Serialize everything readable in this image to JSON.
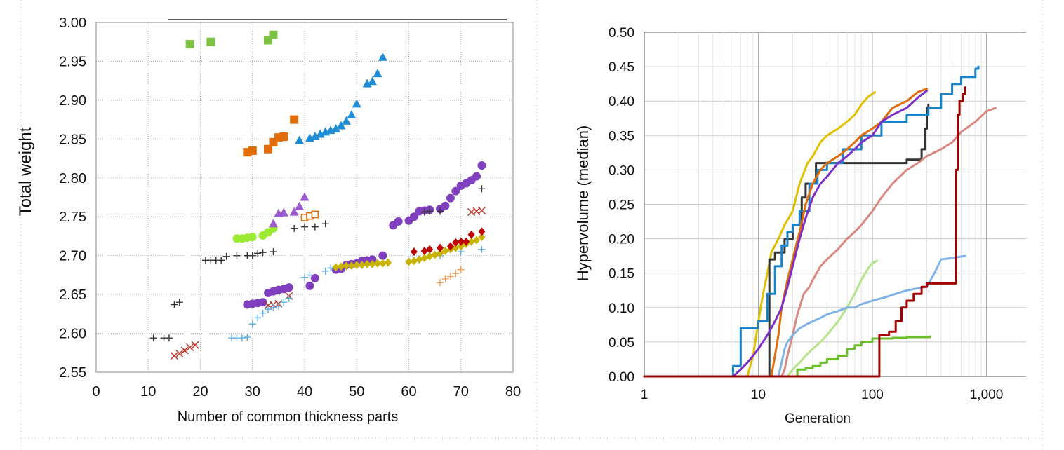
{
  "chart_data": [
    {
      "type": "scatter",
      "title": "",
      "xlabel": "Number of common thickness parts",
      "ylabel": "Total weight",
      "xlim": [
        0,
        80
      ],
      "ylim": [
        2.55,
        3.0
      ],
      "xticks": [
        "0",
        "10",
        "20",
        "30",
        "40",
        "50",
        "60",
        "70",
        "80"
      ],
      "yticks": [
        "2.55",
        "2.60",
        "2.65",
        "2.70",
        "2.75",
        "2.80",
        "2.85",
        "2.90",
        "2.95",
        "3.00"
      ],
      "grid": true,
      "legend": "none",
      "series": [
        {
          "color": "#7dc242",
          "marker": "square",
          "x": [
            18,
            22,
            33,
            34
          ],
          "y": [
            2.972,
            2.975,
            2.977,
            2.984
          ]
        },
        {
          "color": "#e36c0a",
          "marker": "square",
          "x": [
            29,
            30,
            33,
            34,
            35,
            36,
            38
          ],
          "y": [
            2.833,
            2.835,
            2.837,
            2.846,
            2.852,
            2.853,
            2.875
          ]
        },
        {
          "color": "#1f8dd6",
          "marker": "triangle",
          "x": [
            39,
            41,
            42,
            43,
            44,
            45,
            46,
            47,
            48,
            49,
            50,
            52,
            53,
            54,
            55
          ],
          "y": [
            2.848,
            2.851,
            2.853,
            2.856,
            2.859,
            2.861,
            2.863,
            2.867,
            2.873,
            2.881,
            2.895,
            2.921,
            2.924,
            2.934,
            2.955
          ]
        },
        {
          "color": "#7f3fbf",
          "marker": "circle",
          "x": [
            29,
            30,
            31,
            32,
            33,
            34,
            35,
            36,
            37,
            41,
            42,
            46,
            47,
            48,
            49,
            50,
            51,
            52,
            53,
            55,
            57,
            58,
            60,
            61,
            62,
            63,
            64,
            66,
            67,
            68,
            69,
            70,
            71,
            72,
            73,
            74
          ],
          "y": [
            2.637,
            2.638,
            2.639,
            2.64,
            2.652,
            2.654,
            2.656,
            2.657,
            2.659,
            2.661,
            2.671,
            2.682,
            2.683,
            2.688,
            2.689,
            2.69,
            2.693,
            2.694,
            2.695,
            2.7,
            2.739,
            2.744,
            2.745,
            2.75,
            2.757,
            2.758,
            2.759,
            2.76,
            2.764,
            2.774,
            2.783,
            2.79,
            2.793,
            2.797,
            2.802,
            2.816
          ]
        },
        {
          "color": "#9aeb31",
          "marker": "circle",
          "x": [
            27,
            28,
            29,
            30,
            32,
            33,
            34
          ],
          "y": [
            2.722,
            2.722,
            2.723,
            2.724,
            2.726,
            2.73,
            2.735
          ]
        },
        {
          "color": "#9b59d0",
          "marker": "triangle",
          "x": [
            34,
            35,
            36,
            38,
            39,
            40
          ],
          "y": [
            2.741,
            2.754,
            2.755,
            2.756,
            2.763,
            2.775
          ]
        },
        {
          "color": "#333333",
          "marker": "plus",
          "x": [
            11,
            13,
            14,
            15,
            16,
            21,
            22,
            23,
            24,
            25,
            27,
            29,
            30,
            31,
            32,
            34,
            38,
            40,
            42,
            44,
            63,
            64,
            66,
            74
          ],
          "y": [
            2.594,
            2.594,
            2.594,
            2.637,
            2.64,
            2.694,
            2.694,
            2.694,
            2.694,
            2.699,
            2.7,
            2.7,
            2.7,
            2.703,
            2.704,
            2.705,
            2.735,
            2.737,
            2.737,
            2.741,
            2.756,
            2.757,
            2.757,
            2.786
          ]
        },
        {
          "color": "#e36c0a",
          "marker": "open-square",
          "x": [
            40,
            41,
            42
          ],
          "y": [
            2.749,
            2.751,
            2.753
          ]
        },
        {
          "color": "#c0392b",
          "marker": "x",
          "x": [
            15,
            16,
            17,
            18,
            19,
            33,
            34,
            35,
            37,
            72,
            73,
            74
          ],
          "y": [
            2.571,
            2.574,
            2.578,
            2.582,
            2.585,
            2.636,
            2.637,
            2.638,
            2.648,
            2.756,
            2.757,
            2.758
          ]
        },
        {
          "color": "#5dade2",
          "marker": "plus",
          "x": [
            26,
            27,
            28,
            29,
            30,
            31,
            32,
            33,
            34,
            35,
            36,
            37,
            40,
            41,
            44,
            45,
            46,
            48,
            50,
            52,
            54,
            56,
            60,
            62,
            66,
            70,
            74
          ],
          "y": [
            2.594,
            2.594,
            2.594,
            2.595,
            2.612,
            2.62,
            2.626,
            2.631,
            2.633,
            2.635,
            2.64,
            2.645,
            2.672,
            2.675,
            2.68,
            2.684,
            2.685,
            2.686,
            2.688,
            2.689,
            2.69,
            2.691,
            2.693,
            2.695,
            2.7,
            2.705,
            2.708
          ]
        },
        {
          "color": "#c8b400",
          "marker": "diamond",
          "x": [
            46,
            47,
            48,
            49,
            50,
            51,
            52,
            53,
            54,
            55,
            56,
            60,
            61,
            62,
            63,
            64,
            65,
            66,
            67,
            68,
            69,
            70,
            71,
            72,
            73,
            74
          ],
          "y": [
            2.685,
            2.686,
            2.687,
            2.687,
            2.688,
            2.688,
            2.689,
            2.689,
            2.69,
            2.69,
            2.691,
            2.692,
            2.693,
            2.695,
            2.697,
            2.699,
            2.701,
            2.703,
            2.706,
            2.708,
            2.71,
            2.712,
            2.715,
            2.718,
            2.72,
            2.724
          ]
        },
        {
          "color": "#c00000",
          "marker": "diamond",
          "x": [
            61,
            63,
            64,
            66,
            68,
            69,
            70,
            71,
            72,
            74
          ],
          "y": [
            2.705,
            2.706,
            2.708,
            2.71,
            2.712,
            2.717,
            2.718,
            2.718,
            2.727,
            2.731
          ]
        },
        {
          "color": "#f5a05a",
          "marker": "plus",
          "x": [
            66,
            67,
            68,
            69,
            70
          ],
          "y": [
            2.665,
            2.67,
            2.673,
            2.677,
            2.682
          ]
        }
      ]
    },
    {
      "type": "line",
      "title": "",
      "xlabel": "Generation",
      "ylabel": "Hypervolume (median)",
      "xscale": "log",
      "xlim": [
        1,
        1500
      ],
      "ylim": [
        0,
        0.5
      ],
      "xticks": [
        "1",
        "10",
        "100",
        "1,000"
      ],
      "yticks": [
        "0.00",
        "0.05",
        "0.10",
        "0.15",
        "0.20",
        "0.25",
        "0.30",
        "0.35",
        "0.40",
        "0.45",
        "0.50"
      ],
      "grid": true,
      "legend": "none",
      "series": [
        {
          "color": "#e0c000",
          "step": false,
          "x": [
            1,
            8,
            9,
            10,
            11,
            12,
            13,
            15,
            17,
            20,
            23,
            27,
            30,
            35,
            40,
            50,
            60,
            70,
            80,
            90,
            105
          ],
          "y": [
            0,
            0,
            0.03,
            0.08,
            0.12,
            0.15,
            0.18,
            0.2,
            0.22,
            0.24,
            0.28,
            0.31,
            0.32,
            0.34,
            0.35,
            0.36,
            0.37,
            0.38,
            0.395,
            0.405,
            0.413
          ]
        },
        {
          "color": "#333333",
          "step": true,
          "x": [
            1,
            12,
            12.5,
            14,
            17,
            20,
            24,
            26,
            32,
            38,
            55,
            100,
            200,
            270,
            290,
            300,
            310
          ],
          "y": [
            0,
            0,
            0.17,
            0.18,
            0.2,
            0.22,
            0.26,
            0.28,
            0.31,
            0.31,
            0.31,
            0.31,
            0.315,
            0.33,
            0.36,
            0.39,
            0.395
          ]
        },
        {
          "color": "#1a82c8",
          "step": true,
          "x": [
            1,
            5.3,
            6,
            7,
            9,
            10,
            12,
            14,
            16,
            18,
            20,
            23,
            28,
            33,
            40,
            55,
            80,
            120,
            200,
            310,
            400,
            500,
            600,
            800,
            850
          ],
          "y": [
            0,
            0,
            0.015,
            0.07,
            0.07,
            0.08,
            0.12,
            0.16,
            0.19,
            0.21,
            0.22,
            0.24,
            0.28,
            0.3,
            0.31,
            0.33,
            0.35,
            0.37,
            0.38,
            0.39,
            0.41,
            0.425,
            0.435,
            0.447,
            0.45
          ]
        },
        {
          "color": "#e06c0a",
          "step": false,
          "x": [
            1,
            13,
            14,
            15,
            16,
            18,
            20,
            23,
            26,
            30,
            35,
            40,
            50,
            60,
            70,
            80,
            100,
            120,
            150,
            200,
            250,
            300
          ],
          "y": [
            0,
            0,
            0.03,
            0.06,
            0.1,
            0.14,
            0.17,
            0.21,
            0.25,
            0.28,
            0.3,
            0.31,
            0.32,
            0.33,
            0.34,
            0.35,
            0.36,
            0.37,
            0.39,
            0.4,
            0.413,
            0.418
          ]
        },
        {
          "color": "#7d30c8",
          "step": false,
          "x": [
            1,
            6,
            7,
            8,
            9,
            10,
            12,
            14,
            16,
            18,
            20,
            23,
            26,
            30,
            35,
            40,
            50,
            60,
            70,
            80,
            100,
            120,
            150,
            200,
            250,
            300
          ],
          "y": [
            0,
            0,
            0.01,
            0.02,
            0.03,
            0.04,
            0.06,
            0.08,
            0.1,
            0.13,
            0.16,
            0.2,
            0.23,
            0.26,
            0.28,
            0.29,
            0.31,
            0.32,
            0.33,
            0.34,
            0.35,
            0.37,
            0.38,
            0.39,
            0.405,
            0.415
          ]
        },
        {
          "color": "#d98880",
          "step": false,
          "x": [
            1,
            16,
            17,
            18,
            20,
            22,
            25,
            28,
            30,
            35,
            40,
            50,
            60,
            70,
            80,
            100,
            120,
            150,
            200,
            250,
            300,
            400,
            500,
            600,
            800,
            1000,
            1200
          ],
          "y": [
            0,
            0,
            0.01,
            0.03,
            0.06,
            0.09,
            0.12,
            0.13,
            0.14,
            0.16,
            0.17,
            0.185,
            0.2,
            0.21,
            0.22,
            0.24,
            0.26,
            0.28,
            0.3,
            0.31,
            0.32,
            0.33,
            0.34,
            0.355,
            0.37,
            0.385,
            0.39
          ]
        },
        {
          "color": "#b2e58a",
          "step": false,
          "x": [
            1,
            18,
            20,
            23,
            26,
            30,
            35,
            40,
            50,
            60,
            70,
            80,
            90,
            100,
            110
          ],
          "y": [
            0,
            0,
            0.01,
            0.02,
            0.03,
            0.04,
            0.05,
            0.06,
            0.08,
            0.1,
            0.12,
            0.14,
            0.155,
            0.165,
            0.168
          ]
        },
        {
          "color": "#7fb3e8",
          "step": false,
          "x": [
            1,
            15,
            16,
            17,
            18,
            20,
            23,
            26,
            30,
            35,
            40,
            50,
            60,
            70,
            80,
            100,
            130,
            160,
            200,
            250,
            300,
            350,
            400,
            500,
            650
          ],
          "y": [
            0,
            0,
            0.02,
            0.04,
            0.05,
            0.06,
            0.07,
            0.075,
            0.08,
            0.085,
            0.09,
            0.095,
            0.1,
            0.1,
            0.105,
            0.11,
            0.115,
            0.12,
            0.125,
            0.128,
            0.13,
            0.15,
            0.17,
            0.172,
            0.175
          ]
        },
        {
          "color": "#6cbf2a",
          "step": true,
          "x": [
            1,
            20,
            22,
            26,
            30,
            35,
            40,
            50,
            60,
            70,
            80,
            100,
            150,
            200,
            320
          ],
          "y": [
            0,
            0,
            0.01,
            0.012,
            0.015,
            0.02,
            0.025,
            0.03,
            0.04,
            0.045,
            0.05,
            0.055,
            0.056,
            0.057,
            0.058
          ]
        },
        {
          "color": "#a50000",
          "step": true,
          "x": [
            1,
            110,
            115,
            140,
            160,
            180,
            200,
            230,
            270,
            300,
            520,
            540,
            560,
            580,
            620,
            650
          ],
          "y": [
            0,
            0,
            0.06,
            0.065,
            0.08,
            0.1,
            0.11,
            0.12,
            0.13,
            0.135,
            0.135,
            0.3,
            0.38,
            0.4,
            0.41,
            0.42
          ]
        }
      ]
    }
  ]
}
